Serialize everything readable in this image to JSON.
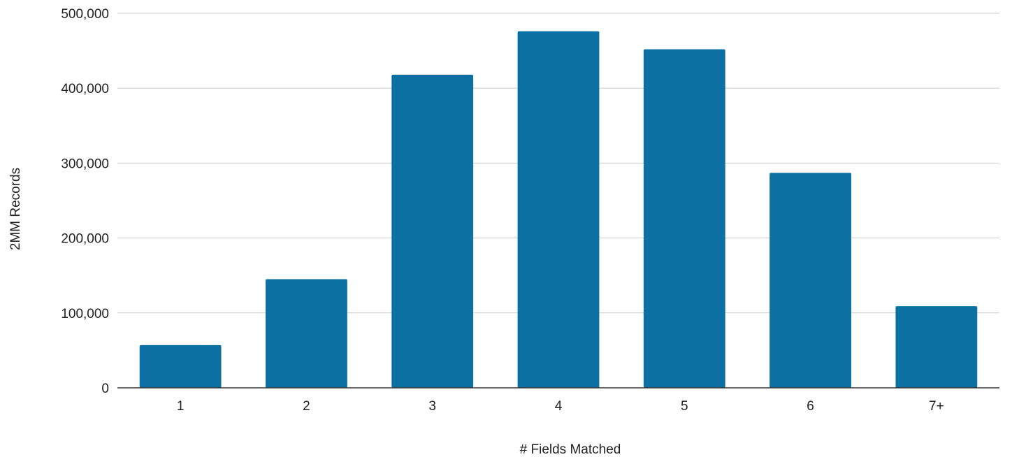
{
  "chart_data": {
    "type": "bar",
    "categories": [
      "1",
      "2",
      "3",
      "4",
      "5",
      "6",
      "7+"
    ],
    "values": [
      57000,
      145000,
      418000,
      476000,
      452000,
      287000,
      109000
    ],
    "xlabel": "# Fields Matched",
    "ylabel": "2MM Records",
    "ylim": [
      0,
      500000
    ],
    "yticks": [
      0,
      100000,
      200000,
      300000,
      400000,
      500000
    ],
    "ytick_labels": [
      "0",
      "100,000",
      "200,000",
      "300,000",
      "400,000",
      "500,000"
    ],
    "grid": true,
    "bar_color": "#0d70a3",
    "grid_color": "#cccccc",
    "axis_color": "#333333"
  }
}
